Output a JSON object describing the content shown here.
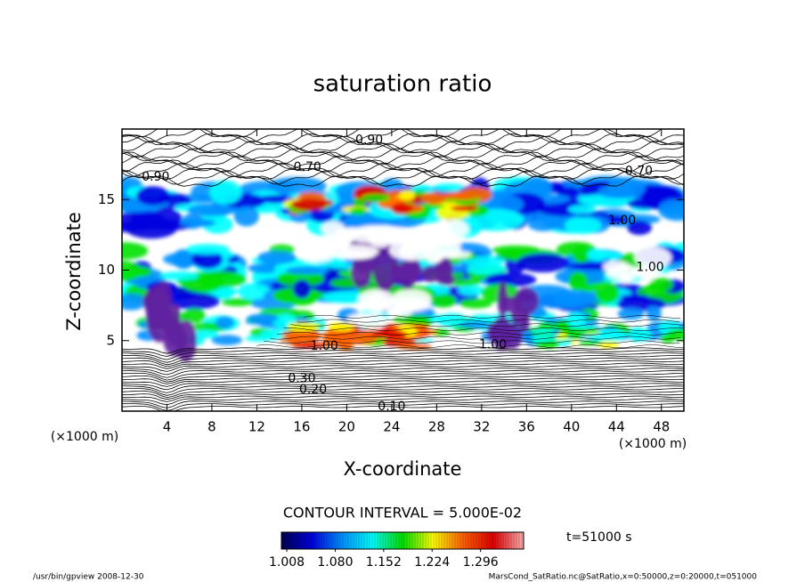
{
  "chart_data": {
    "type": "contour",
    "title": "saturation ratio",
    "x_label": "X-coordinate",
    "y_label": "Z-coordinate",
    "x_unit": "(×1000 m)",
    "y_unit": "(×1000 m)",
    "xlim": [
      0,
      50
    ],
    "xticks": [
      4,
      8,
      12,
      16,
      20,
      24,
      28,
      32,
      36,
      40,
      44,
      48
    ],
    "ylim": [
      0,
      20
    ],
    "yticks": [
      5,
      10,
      15
    ],
    "contour_interval": "CONTOUR INTERVAL = 5.000E-02",
    "time": "t=51000 s",
    "colorbar": {
      "clim": [
        1.0,
        1.36
      ],
      "ticks": [
        1.008,
        {
          "value": 1.08,
          "label": "1.080"
        },
        1.152,
        1.224,
        1.296
      ],
      "colormap": [
        "#000050",
        "#0000e0",
        "#0090ff",
        "#00ffff",
        "#00e000",
        "#ffff00",
        "#ff6000",
        "#e00000",
        "#ffb0b0"
      ]
    },
    "contour_labels": [
      {
        "text": "0.10",
        "x": 24,
        "y": 0.3
      },
      {
        "text": "0.20",
        "x": 17,
        "y": 1.5
      },
      {
        "text": "0.30",
        "x": 16,
        "y": 2.3
      },
      {
        "text": "1.00",
        "x": 18,
        "y": 4.6
      },
      {
        "text": "1.00",
        "x": 33,
        "y": 4.7
      },
      {
        "text": "0.90",
        "x": 3,
        "y": 16.6
      },
      {
        "text": "0.70",
        "x": 16.5,
        "y": 17.3
      },
      {
        "text": "0.90",
        "x": 22,
        "y": 19.2
      },
      {
        "text": "0.70",
        "x": 46,
        "y": 17
      },
      {
        "text": "1.00",
        "x": 44.5,
        "y": 13.5
      },
      {
        "text": "1.00",
        "x": 47,
        "y": 10.2
      }
    ],
    "footer_left": "/usr/bin/gpview  2008-12-30",
    "footer_right": "MarsCond_SatRatio.nc@SatRatio,x=0:50000,z=0:20000,t=051000"
  }
}
